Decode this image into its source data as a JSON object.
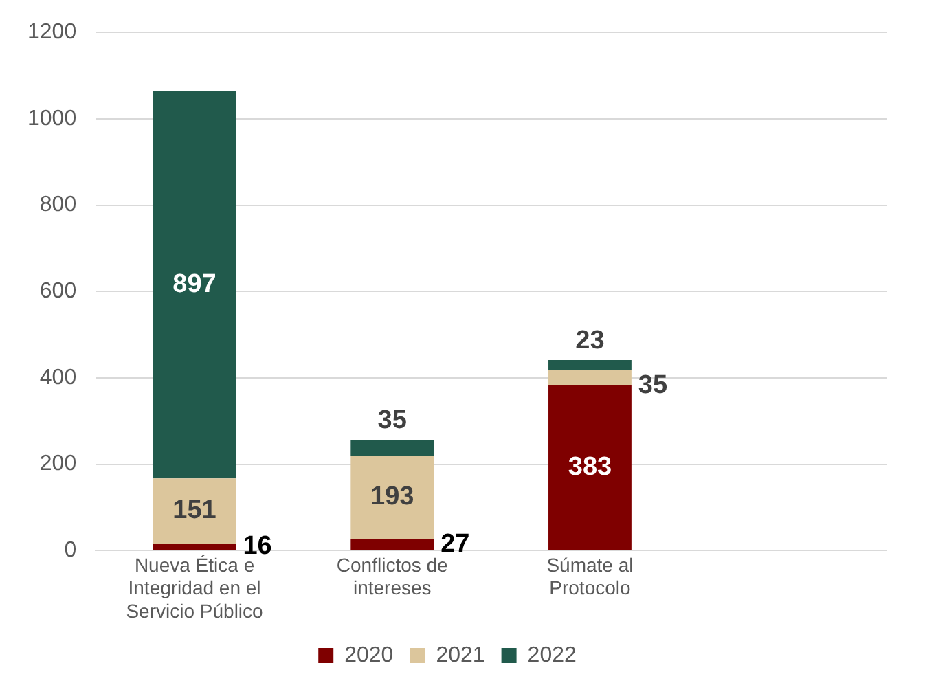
{
  "chart_data": {
    "type": "bar",
    "stacked": true,
    "categories": [
      "Nueva Ética e Integridad en el Servicio Público",
      "Conflictos de intereses",
      "Súmate al Protocolo",
      null
    ],
    "series": [
      {
        "name": "2020",
        "color": "#7f0000",
        "values": [
          16,
          27,
          383,
          null
        ]
      },
      {
        "name": "2021",
        "color": "#dcc69c",
        "values": [
          151,
          193,
          35,
          null
        ]
      },
      {
        "name": "2022",
        "color": "#215a4c",
        "values": [
          897,
          35,
          23,
          null
        ]
      }
    ],
    "ylim": [
      0,
      1200
    ],
    "yticks": [
      0,
      200,
      400,
      600,
      800,
      1000,
      1200
    ],
    "grid": "y",
    "legend": "bottom",
    "data_labels": true
  }
}
